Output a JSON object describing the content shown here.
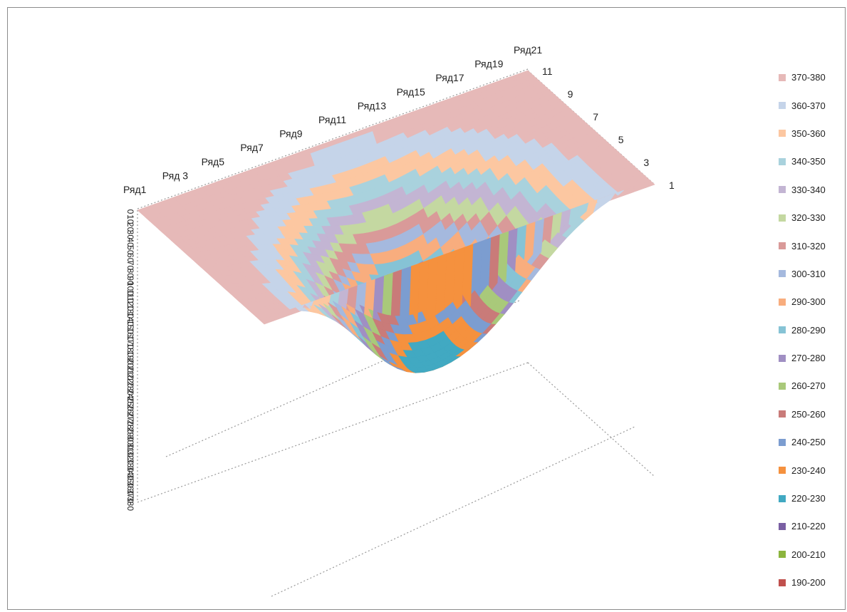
{
  "chart_data": {
    "type": "surface",
    "series_axis": {
      "labels": [
        "Ряд1",
        "Ряд 3",
        "Ряд5",
        "Ряд7",
        "Ряд9",
        "Ряд11",
        "Ряд13",
        "Ряд15",
        "Ряд17",
        "Ряд19",
        "Ряд21"
      ]
    },
    "category_axis": {
      "labels": [
        "1",
        "3",
        "5",
        "7",
        "9",
        "11"
      ]
    },
    "value_axis": {
      "labels": [
        "0",
        "10",
        "20",
        "30",
        "40",
        "50",
        "60",
        "70",
        "80",
        "90",
        "100",
        "110",
        "120",
        "130",
        "140",
        "150",
        "160",
        "170",
        "180",
        "190",
        "200",
        "210",
        "220",
        "230",
        "240",
        "250",
        "260",
        "270",
        "280",
        "290",
        "300",
        "310",
        "320",
        "330",
        "340",
        "350",
        "360",
        "370",
        "380"
      ],
      "range": [
        0,
        380
      ],
      "reversed": true
    },
    "legend": {
      "position": "right",
      "entries": [
        {
          "label": "370-380",
          "color": "#e6b9b8"
        },
        {
          "label": "360-370",
          "color": "#c5d4e9"
        },
        {
          "label": "350-360",
          "color": "#fcc7a1"
        },
        {
          "label": "340-350",
          "color": "#a9d2dd"
        },
        {
          "label": "330-340",
          "color": "#c3b5d3"
        },
        {
          "label": "320-330",
          "color": "#c4d8a1"
        },
        {
          "label": "310-320",
          "color": "#d99a99"
        },
        {
          "label": "300-310",
          "color": "#a5b9de"
        },
        {
          "label": "290-300",
          "color": "#f8ad7e"
        },
        {
          "label": "280-290",
          "color": "#86c3d5"
        },
        {
          "label": "270-280",
          "color": "#a08fc3"
        },
        {
          "label": "260-270",
          "color": "#a9c97a"
        },
        {
          "label": "250-260",
          "color": "#c97b79"
        },
        {
          "label": "240-250",
          "color": "#7c9dd0"
        },
        {
          "label": "230-240",
          "color": "#f5913e"
        },
        {
          "label": "220-230",
          "color": "#41a9c2"
        },
        {
          "label": "210-220",
          "color": "#7a5fa3"
        },
        {
          "label": "200-210",
          "color": "#8cb53e"
        },
        {
          "label": "190-200",
          "color": "#c0504d"
        }
      ]
    }
  }
}
